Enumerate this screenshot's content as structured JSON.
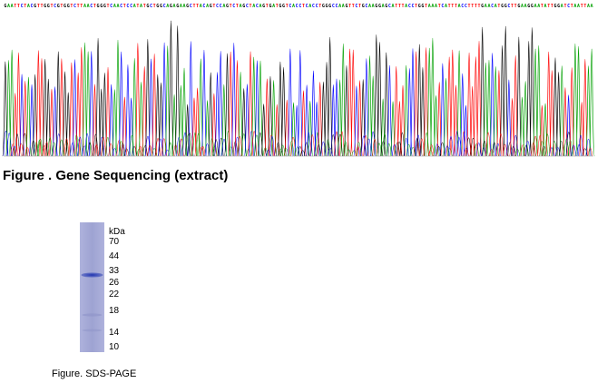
{
  "sequencing": {
    "bases": "GAATTCTACGTTGGTCGTGGTCTTAACTGGGTCAACTCCATATGCTGGCAGAGAAGCTTACAGTCCAGTCTAGCTACAGTGATGGTCACCTCACCTGGGCCAAGTTCTGCAAGGAGCATTTACCTGGTAAATCATTTACCTTTTGAACATGGCTTGAAGGAATATTGGATCTAATTAA",
    "colors": {
      "A": "#00a000",
      "C": "#0000ff",
      "G": "#000000",
      "T": "#ff0000"
    },
    "caption": "Figure . Gene Sequencing (extract)"
  },
  "gel": {
    "unit_label": "kDa",
    "markers": [
      "70",
      "44",
      "33",
      "26",
      "22",
      "18",
      "14",
      "10"
    ],
    "caption": "Figure. SDS-PAGE",
    "lane_color": "#9ea3d2",
    "band_color": "#2b3fb8"
  }
}
